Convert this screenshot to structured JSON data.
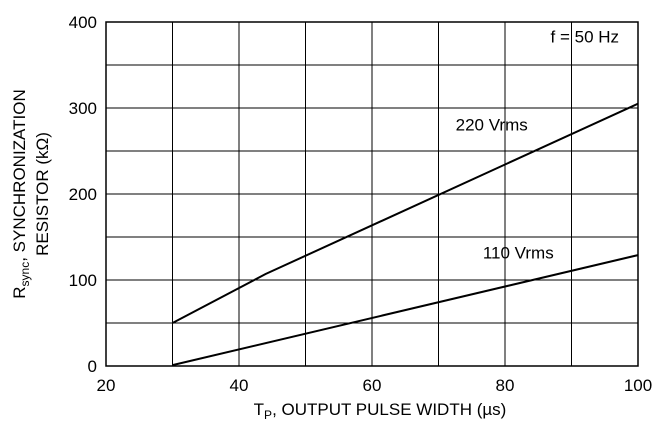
{
  "chart_data": {
    "type": "line",
    "xlabel_main": "T",
    "xlabel_sub": "P",
    "xlabel_rest": ", OUTPUT PULSE WIDTH (",
    "xlabel_unit": "µs",
    "xlabel_close": ")",
    "ylabel_main": "R",
    "ylabel_sub": "sync",
    "ylabel_rest": ", SYNCHRONIZATION",
    "ylabel_line2": "RESISTOR (kΩ)",
    "xlim": [
      20,
      100
    ],
    "ylim": [
      0,
      400
    ],
    "x_ticks": [
      "20",
      "40",
      "60",
      "80",
      "100"
    ],
    "y_ticks": [
      "0",
      "100",
      "200",
      "300",
      "400"
    ],
    "x_grid_step": 10,
    "y_grid_step": 50,
    "grid": true,
    "series": [
      {
        "name": "220 Vrms",
        "x": [
          30,
          44,
          100
        ],
        "y": [
          50,
          107,
          305
        ]
      },
      {
        "name": "110 Vrms",
        "x": [
          30,
          100
        ],
        "y": [
          1,
          129
        ]
      }
    ],
    "annotations": [
      {
        "text": "f = 50 Hz",
        "x": 92,
        "y": 376
      },
      {
        "text": "220 Vrms",
        "x": 78,
        "y": 274
      },
      {
        "text": "110 Vrms",
        "x": 82,
        "y": 125
      }
    ]
  }
}
